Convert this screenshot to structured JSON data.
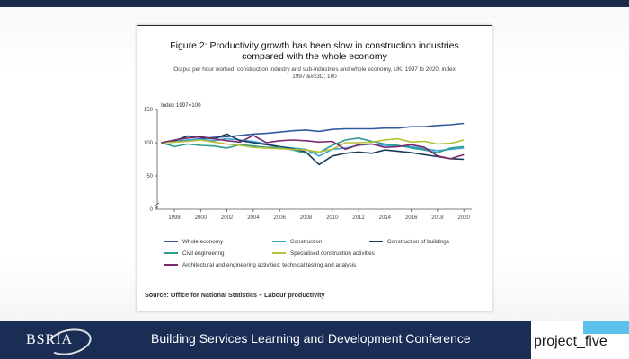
{
  "footer": {
    "logo": "BSRIA",
    "conference_title": "Building Services Learning and Development Conference",
    "partner_logo": "project_five"
  },
  "chart_data": {
    "type": "line",
    "title": "Figure 2: Productivity growth has been slow in construction industries compared with the whole economy",
    "title_lines": [
      "Figure 2: Productivity growth has been slow in construction industries",
      "compared with the whole economy"
    ],
    "subtitle": "Output per hour worked, construction industry and sub-industries and whole economy, UK, 1997 to 2020, index 1997 &#x3D; 100",
    "subtitle_lines": [
      "Output per hour worked, construction industry and sub-industries and whole economy, UK, 1997 to 2020, index",
      "1997 &#x3D; 100"
    ],
    "ylabel": "Index 1997=100",
    "xlabel": "",
    "source": "Source: Office for National Statistics – Labour productivity",
    "ylim": [
      0,
      150
    ],
    "yticks": [
      0,
      50,
      100,
      150
    ],
    "xlim": [
      1996.7,
      2020.6
    ],
    "xticks": [
      1998,
      2000,
      2002,
      2004,
      2006,
      2008,
      2010,
      2012,
      2014,
      2016,
      2018,
      2020
    ],
    "axis_break": true,
    "grid": false,
    "legend_position": "bottom",
    "x": [
      1997,
      1998,
      1999,
      2000,
      2001,
      2002,
      2003,
      2004,
      2005,
      2006,
      2007,
      2008,
      2009,
      2010,
      2011,
      2012,
      2013,
      2014,
      2015,
      2016,
      2017,
      2018,
      2019,
      2020
    ],
    "series": [
      {
        "name": "Whole economy",
        "color": "#2e5c9e",
        "values": [
          100,
          102,
          104,
          106,
          108,
          109,
          111,
          113,
          114,
          116,
          118,
          119,
          117,
          120,
          121,
          121,
          121,
          122,
          122,
          124,
          124,
          126,
          127,
          129
        ]
      },
      {
        "name": "Construction",
        "color": "#3aa3d9",
        "values": [
          100,
          101,
          104,
          105,
          103,
          106,
          104,
          102,
          98,
          94,
          92,
          90,
          80,
          90,
          92,
          96,
          98,
          96,
          95,
          94,
          91,
          88,
          90,
          92
        ]
      },
      {
        "name": "Construction of buildings",
        "color": "#1a3a5c",
        "values": [
          100,
          103,
          110,
          108,
          106,
          113,
          103,
          100,
          97,
          94,
          91,
          86,
          67,
          80,
          84,
          86,
          84,
          89,
          87,
          85,
          82,
          79,
          76,
          75
        ]
      },
      {
        "name": "Civil engineering",
        "color": "#2a9d8f",
        "values": [
          100,
          94,
          98,
          96,
          95,
          92,
          97,
          95,
          93,
          93,
          89,
          84,
          85,
          96,
          104,
          107,
          102,
          98,
          96,
          92,
          89,
          85,
          92,
          94
        ]
      },
      {
        "name": "Specialised construction activities",
        "color": "#b5c033",
        "values": [
          100,
          101,
          102,
          104,
          101,
          98,
          96,
          93,
          92,
          91,
          90,
          89,
          86,
          90,
          100,
          100,
          101,
          104,
          106,
          101,
          102,
          98,
          99,
          104
        ]
      },
      {
        "name": "Architectural and engineering activities; technical testing and analysis",
        "color": "#7b2a6e",
        "values": [
          100,
          104,
          107,
          109,
          106,
          103,
          101,
          111,
          100,
          103,
          104,
          103,
          101,
          102,
          90,
          97,
          98,
          93,
          94,
          97,
          93,
          80,
          76,
          82
        ]
      }
    ]
  }
}
